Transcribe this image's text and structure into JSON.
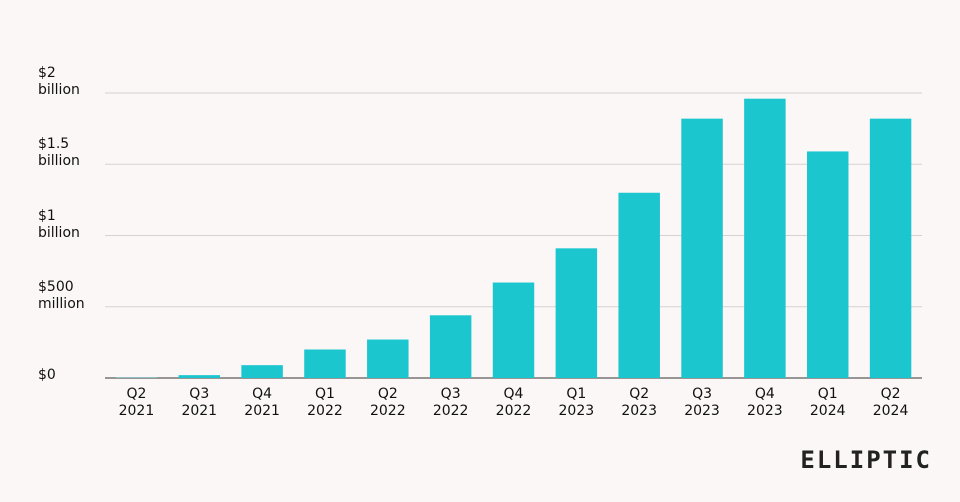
{
  "chart_data": {
    "type": "bar",
    "categories": [
      "Q2 2021",
      "Q3 2021",
      "Q4 2021",
      "Q1 2022",
      "Q2 2022",
      "Q3 2022",
      "Q4 2022",
      "Q1 2023",
      "Q2 2023",
      "Q3 2023",
      "Q4 2023",
      "Q1 2024",
      "Q2 2024"
    ],
    "values": [
      2000000,
      20000000,
      90000000,
      200000000,
      270000000,
      440000000,
      670000000,
      910000000,
      1300000000,
      1820000000,
      1960000000,
      1590000000,
      1820000000
    ],
    "color": "#1bc6cf",
    "ylim": [
      0,
      2000000000
    ],
    "yticks": [
      {
        "value": 0,
        "label": "$0"
      },
      {
        "value": 500000000,
        "label": "$500 million"
      },
      {
        "value": 1000000000,
        "label": "$1 billion"
      },
      {
        "value": 1500000000,
        "label": "$1.5 billion"
      },
      {
        "value": 2000000000,
        "label": "$2 billion"
      }
    ],
    "grid": true
  },
  "logo": "ELLIPTIC"
}
